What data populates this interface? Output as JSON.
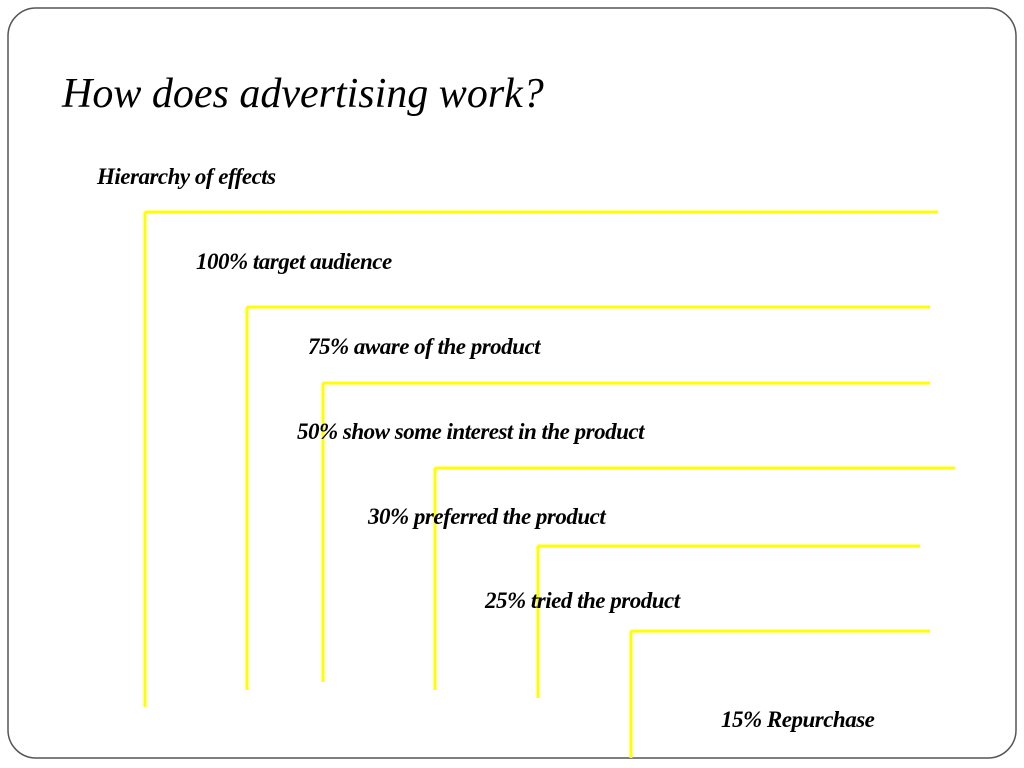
{
  "slide": {
    "title": "How does advertising work?",
    "subtitle": "Hierarchy of effects",
    "levels": [
      "100% target audience",
      "75% aware of the product",
      "50% show some interest in the product",
      "30% preferred the product",
      "25% tried the product",
      "15% Repurchase"
    ]
  }
}
